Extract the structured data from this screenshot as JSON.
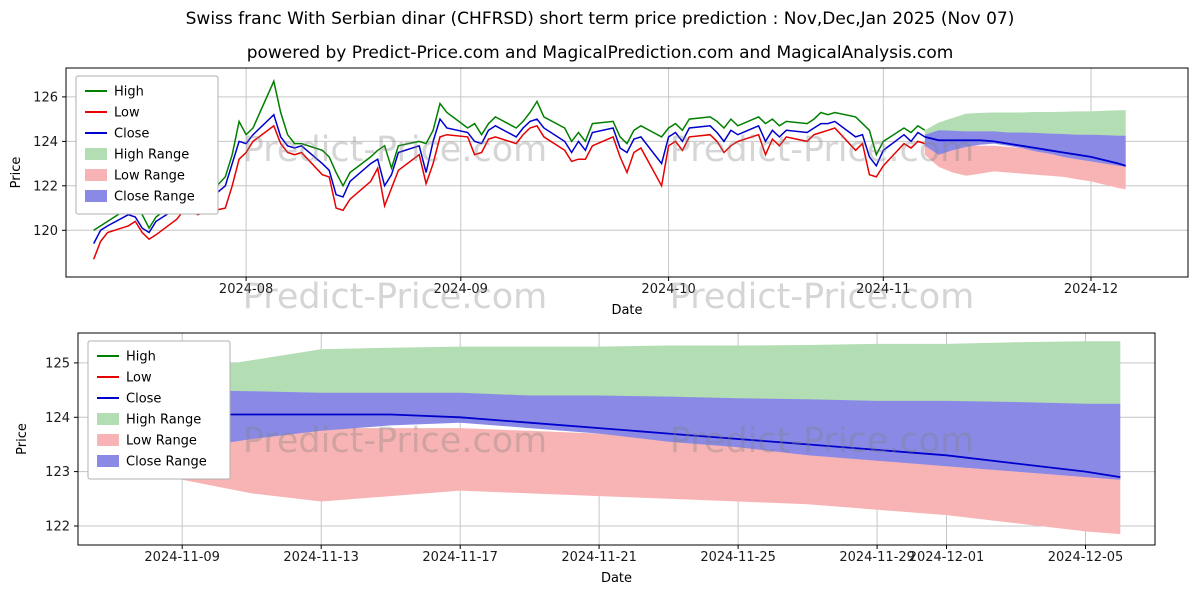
{
  "page": {
    "title": "Swiss franc With Serbian dinar (CHFRSD) short term price prediction : Nov,Dec,Jan 2025 (Nov 07)",
    "subtitle": "powered by Predict-Price.com and MagicalPrediction.com and MagicalAnalysis.com",
    "watermark": "Predict-Price.com"
  },
  "colors": {
    "high": "#008000",
    "low": "#e60000",
    "close": "#0000cd",
    "high_range": "#b3ddb3",
    "low_range": "#f8b4b4",
    "close_range": "#8a8ae6",
    "grid": "#c6c6c6"
  },
  "chart_data": [
    {
      "type": "line",
      "panel": "historical-with-forecast",
      "xlabel": "Date",
      "ylabel": "Price",
      "x_domain": [
        "2024-07-06",
        "2024-12-15"
      ],
      "y_domain": [
        117.9,
        127.3
      ],
      "x_ticks": [
        {
          "date": "2024-08-01",
          "label": "2024-08"
        },
        {
          "date": "2024-09-01",
          "label": "2024-09"
        },
        {
          "date": "2024-10-01",
          "label": "2024-10"
        },
        {
          "date": "2024-11-01",
          "label": "2024-11"
        },
        {
          "date": "2024-12-01",
          "label": "2024-12"
        }
      ],
      "y_ticks": [
        120,
        122,
        124,
        126
      ],
      "legend": [
        {
          "label": "High",
          "swatch": "line",
          "color": "high"
        },
        {
          "label": "Low",
          "swatch": "line",
          "color": "low"
        },
        {
          "label": "Close",
          "swatch": "line",
          "color": "close"
        },
        {
          "label": "High Range",
          "swatch": "patch",
          "color": "high_range"
        },
        {
          "label": "Low Range",
          "swatch": "patch",
          "color": "low_range"
        },
        {
          "label": "Close Range",
          "swatch": "patch",
          "color": "close_range"
        }
      ],
      "series": {
        "historical": {
          "dates": [
            "2024-07-10",
            "2024-07-11",
            "2024-07-12",
            "2024-07-15",
            "2024-07-16",
            "2024-07-17",
            "2024-07-18",
            "2024-07-19",
            "2024-07-22",
            "2024-07-23",
            "2024-07-24",
            "2024-07-25",
            "2024-07-26",
            "2024-07-29",
            "2024-07-30",
            "2024-07-31",
            "2024-08-01",
            "2024-08-02",
            "2024-08-05",
            "2024-08-06",
            "2024-08-07",
            "2024-08-08",
            "2024-08-09",
            "2024-08-12",
            "2024-08-13",
            "2024-08-14",
            "2024-08-15",
            "2024-08-16",
            "2024-08-19",
            "2024-08-20",
            "2024-08-21",
            "2024-08-22",
            "2024-08-23",
            "2024-08-26",
            "2024-08-27",
            "2024-08-28",
            "2024-08-29",
            "2024-08-30",
            "2024-09-02",
            "2024-09-03",
            "2024-09-04",
            "2024-09-05",
            "2024-09-06",
            "2024-09-09",
            "2024-09-10",
            "2024-09-11",
            "2024-09-12",
            "2024-09-13",
            "2024-09-16",
            "2024-09-17",
            "2024-09-18",
            "2024-09-19",
            "2024-09-20",
            "2024-09-23",
            "2024-09-24",
            "2024-09-25",
            "2024-09-26",
            "2024-09-27",
            "2024-09-30",
            "2024-10-01",
            "2024-10-02",
            "2024-10-03",
            "2024-10-04",
            "2024-10-07",
            "2024-10-08",
            "2024-10-09",
            "2024-10-10",
            "2024-10-11",
            "2024-10-14",
            "2024-10-15",
            "2024-10-16",
            "2024-10-17",
            "2024-10-18",
            "2024-10-21",
            "2024-10-22",
            "2024-10-23",
            "2024-10-24",
            "2024-10-25",
            "2024-10-28",
            "2024-10-29",
            "2024-10-30",
            "2024-10-31",
            "2024-11-01",
            "2024-11-04",
            "2024-11-05",
            "2024-11-06",
            "2024-11-07"
          ],
          "high": [
            120.0,
            120.2,
            120.4,
            121.0,
            121.1,
            120.7,
            120.1,
            120.6,
            121.3,
            121.6,
            121.5,
            121.2,
            121.4,
            122.4,
            123.4,
            124.9,
            124.3,
            124.6,
            126.7,
            125.3,
            124.3,
            123.9,
            123.9,
            123.6,
            123.3,
            122.6,
            122.0,
            122.6,
            123.3,
            123.6,
            123.8,
            122.8,
            123.8,
            124.0,
            123.9,
            124.5,
            125.7,
            125.3,
            124.6,
            124.8,
            124.3,
            124.8,
            125.1,
            124.6,
            124.9,
            125.3,
            125.8,
            125.1,
            124.6,
            124.0,
            124.4,
            124.0,
            124.8,
            124.9,
            124.2,
            123.9,
            124.5,
            124.7,
            124.2,
            124.6,
            124.8,
            124.5,
            125.0,
            125.1,
            124.9,
            124.6,
            125.0,
            124.7,
            125.1,
            124.8,
            125.0,
            124.7,
            124.9,
            124.8,
            125.0,
            125.3,
            125.2,
            125.3,
            125.1,
            124.8,
            124.5,
            123.4,
            124.0,
            124.6,
            124.4,
            124.7,
            124.5
          ],
          "low": [
            118.7,
            119.5,
            119.9,
            120.2,
            120.4,
            119.9,
            119.6,
            119.8,
            120.5,
            120.9,
            121.0,
            120.7,
            120.8,
            121.0,
            122.0,
            123.2,
            123.5,
            124.0,
            124.7,
            123.9,
            123.5,
            123.4,
            123.5,
            122.5,
            122.4,
            121.0,
            120.9,
            121.4,
            122.2,
            122.8,
            121.1,
            121.9,
            122.7,
            123.4,
            122.1,
            123.0,
            124.2,
            124.3,
            124.2,
            123.4,
            123.5,
            124.1,
            124.2,
            123.9,
            124.3,
            124.6,
            124.7,
            124.2,
            123.6,
            123.1,
            123.2,
            123.2,
            123.8,
            124.2,
            123.3,
            122.6,
            123.5,
            123.7,
            122.0,
            123.8,
            124.0,
            123.6,
            124.2,
            124.3,
            124.0,
            123.5,
            123.8,
            124.0,
            124.3,
            123.4,
            124.1,
            123.8,
            124.2,
            124.0,
            124.3,
            124.4,
            124.5,
            124.6,
            123.6,
            123.9,
            122.5,
            122.4,
            122.9,
            123.9,
            123.7,
            124.0,
            123.9
          ],
          "close": [
            119.4,
            120.0,
            120.2,
            120.7,
            120.6,
            120.1,
            119.9,
            120.4,
            121.0,
            121.2,
            121.2,
            120.9,
            121.2,
            122.0,
            123.0,
            124.0,
            123.9,
            124.3,
            125.2,
            124.2,
            123.8,
            123.7,
            123.8,
            123.0,
            122.7,
            121.6,
            121.5,
            122.2,
            123.0,
            123.2,
            122.0,
            122.5,
            123.5,
            123.8,
            122.6,
            124.0,
            125.0,
            124.6,
            124.4,
            124.0,
            123.9,
            124.5,
            124.7,
            124.2,
            124.6,
            124.9,
            125.0,
            124.6,
            124.0,
            123.5,
            124.0,
            123.6,
            124.4,
            124.6,
            123.7,
            123.5,
            124.1,
            124.2,
            123.0,
            124.2,
            124.4,
            124.0,
            124.6,
            124.7,
            124.4,
            124.0,
            124.5,
            124.3,
            124.7,
            124.0,
            124.5,
            124.2,
            124.5,
            124.4,
            124.6,
            124.8,
            124.8,
            124.9,
            124.2,
            124.3,
            123.3,
            122.9,
            123.6,
            124.3,
            124.0,
            124.4,
            124.2
          ]
        },
        "forecast": {
          "dates": [
            "2024-11-07",
            "2024-11-09",
            "2024-11-11",
            "2024-11-13",
            "2024-11-15",
            "2024-11-17",
            "2024-11-19",
            "2024-11-21",
            "2024-11-23",
            "2024-11-25",
            "2024-11-27",
            "2024-11-29",
            "2024-12-01",
            "2024-12-03",
            "2024-12-05",
            "2024-12-06"
          ],
          "close": [
            124.2,
            124.05,
            124.05,
            124.05,
            124.05,
            124.0,
            123.9,
            123.8,
            123.7,
            123.6,
            123.5,
            123.4,
            123.3,
            123.15,
            123.0,
            122.9
          ],
          "high_range_upper": [
            124.5,
            124.85,
            125.05,
            125.25,
            125.28,
            125.3,
            125.3,
            125.3,
            125.32,
            125.32,
            125.33,
            125.35,
            125.35,
            125.38,
            125.4,
            125.4
          ],
          "high_range_lower": [
            124.3,
            124.45,
            124.4,
            124.35,
            124.3,
            124.3,
            124.25,
            124.25,
            124.2,
            124.2,
            124.2,
            124.2,
            124.2,
            124.2,
            124.2,
            124.2
          ],
          "close_range_upper": [
            124.3,
            124.5,
            124.48,
            124.45,
            124.45,
            124.45,
            124.4,
            124.4,
            124.38,
            124.35,
            124.33,
            124.3,
            124.3,
            124.28,
            124.25,
            124.25
          ],
          "close_range_lower": [
            123.8,
            123.4,
            123.6,
            123.75,
            123.85,
            123.9,
            123.8,
            123.7,
            123.55,
            123.45,
            123.3,
            123.2,
            123.1,
            123.0,
            122.9,
            122.85
          ],
          "low_range_upper": [
            123.9,
            123.8,
            123.8,
            123.8,
            123.8,
            123.8,
            123.75,
            123.7,
            123.6,
            123.5,
            123.4,
            123.3,
            123.2,
            123.1,
            123.0,
            122.95
          ],
          "low_range_lower": [
            123.4,
            122.85,
            122.6,
            122.45,
            122.55,
            122.65,
            122.6,
            122.55,
            122.5,
            122.45,
            122.4,
            122.3,
            122.2,
            122.05,
            121.9,
            121.85
          ]
        }
      }
    },
    {
      "type": "line",
      "panel": "forecast-zoom",
      "xlabel": "Date",
      "ylabel": "Price",
      "x_domain": [
        "2024-11-06",
        "2024-12-07"
      ],
      "y_domain": [
        121.65,
        125.55
      ],
      "x_ticks": [
        {
          "date": "2024-11-09",
          "label": "2024-11-09"
        },
        {
          "date": "2024-11-13",
          "label": "2024-11-13"
        },
        {
          "date": "2024-11-17",
          "label": "2024-11-17"
        },
        {
          "date": "2024-11-21",
          "label": "2024-11-21"
        },
        {
          "date": "2024-11-25",
          "label": "2024-11-25"
        },
        {
          "date": "2024-11-29",
          "label": "2024-11-29"
        },
        {
          "date": "2024-12-01",
          "label": "2024-12-01"
        },
        {
          "date": "2024-12-05",
          "label": "2024-12-05"
        }
      ],
      "y_ticks": [
        122,
        123,
        124,
        125
      ],
      "legend": [
        {
          "label": "High",
          "swatch": "line",
          "color": "high"
        },
        {
          "label": "Low",
          "swatch": "line",
          "color": "low"
        },
        {
          "label": "Close",
          "swatch": "line",
          "color": "close"
        },
        {
          "label": "High Range",
          "swatch": "patch",
          "color": "high_range"
        },
        {
          "label": "Low Range",
          "swatch": "patch",
          "color": "low_range"
        },
        {
          "label": "Close Range",
          "swatch": "patch",
          "color": "close_range"
        }
      ],
      "series": {
        "forecast": {
          "dates": [
            "2024-11-07",
            "2024-11-09",
            "2024-11-11",
            "2024-11-13",
            "2024-11-15",
            "2024-11-17",
            "2024-11-19",
            "2024-11-21",
            "2024-11-23",
            "2024-11-25",
            "2024-11-27",
            "2024-11-29",
            "2024-12-01",
            "2024-12-03",
            "2024-12-05",
            "2024-12-06"
          ],
          "close": [
            124.2,
            124.05,
            124.05,
            124.05,
            124.05,
            124.0,
            123.9,
            123.8,
            123.7,
            123.6,
            123.5,
            123.4,
            123.3,
            123.15,
            123.0,
            122.9
          ],
          "high_range_upper": [
            124.5,
            124.85,
            125.05,
            125.25,
            125.28,
            125.3,
            125.3,
            125.3,
            125.32,
            125.32,
            125.33,
            125.35,
            125.35,
            125.38,
            125.4,
            125.4
          ],
          "high_range_lower": [
            124.3,
            124.45,
            124.4,
            124.35,
            124.3,
            124.3,
            124.25,
            124.25,
            124.2,
            124.2,
            124.2,
            124.2,
            124.2,
            124.2,
            124.2,
            124.2
          ],
          "close_range_upper": [
            124.3,
            124.5,
            124.48,
            124.45,
            124.45,
            124.45,
            124.4,
            124.4,
            124.38,
            124.35,
            124.33,
            124.3,
            124.3,
            124.28,
            124.25,
            124.25
          ],
          "close_range_lower": [
            123.8,
            123.4,
            123.6,
            123.75,
            123.85,
            123.9,
            123.8,
            123.7,
            123.55,
            123.45,
            123.3,
            123.2,
            123.1,
            123.0,
            122.9,
            122.85
          ],
          "low_range_upper": [
            123.9,
            123.8,
            123.8,
            123.8,
            123.8,
            123.8,
            123.75,
            123.7,
            123.6,
            123.5,
            123.4,
            123.3,
            123.2,
            123.1,
            123.0,
            122.95
          ],
          "low_range_lower": [
            123.4,
            122.85,
            122.6,
            122.45,
            122.55,
            122.65,
            122.6,
            122.55,
            122.5,
            122.45,
            122.4,
            122.3,
            122.2,
            122.05,
            121.9,
            121.85
          ]
        }
      }
    }
  ]
}
